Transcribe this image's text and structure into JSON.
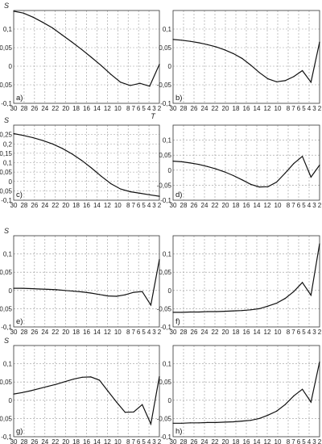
{
  "chart_data": [
    {
      "panel": "a)",
      "type": "line",
      "ylabel": "S",
      "xlabel": "T",
      "xticks": [
        "30",
        "28",
        "26",
        "24",
        "22",
        "20",
        "18",
        "16",
        "14",
        "12",
        "10",
        "8",
        "7",
        "6",
        "5",
        "4",
        "3",
        "2"
      ],
      "ylim": [
        -0.1,
        0.15
      ],
      "yticks": [
        "-0,1",
        "-0,05",
        "0",
        "0,05",
        "0,1"
      ],
      "values": [
        0.148,
        0.143,
        0.132,
        0.118,
        0.103,
        0.084,
        0.065,
        0.045,
        0.024,
        0.002,
        -0.022,
        -0.043,
        -0.052,
        -0.046,
        -0.054,
        0.005
      ]
    },
    {
      "panel": "b)",
      "type": "line",
      "ylabel": "",
      "xlabel": "",
      "xticks": [
        "30",
        "28",
        "26",
        "24",
        "22",
        "20",
        "18",
        "16",
        "14",
        "12",
        "10",
        "8",
        "7",
        "6",
        "5",
        "4",
        "3",
        "2"
      ],
      "ylim": [
        -0.1,
        0.15
      ],
      "yticks": [
        "-0,1",
        "-0,05",
        "0",
        "0,05",
        "0,1"
      ],
      "values": [
        0.072,
        0.07,
        0.067,
        0.063,
        0.058,
        0.052,
        0.044,
        0.034,
        0.021,
        0.003,
        -0.017,
        -0.034,
        -0.042,
        -0.039,
        -0.028,
        -0.012,
        -0.043,
        0.065
      ]
    },
    {
      "panel": "c)",
      "type": "line",
      "ylabel": "S",
      "xlabel": "",
      "xticks": [
        "30",
        "28",
        "26",
        "24",
        "22",
        "20",
        "18",
        "16",
        "14",
        "12",
        "10",
        "8",
        "7",
        "6",
        "5",
        "4",
        "3",
        "2"
      ],
      "ylim": [
        -0.1,
        0.3
      ],
      "yticks": [
        "-0,1",
        "-0,05",
        "0",
        "0,05",
        "0,1",
        "0,15",
        "0,2",
        "0,25"
      ],
      "values": [
        0.255,
        0.245,
        0.233,
        0.218,
        0.2,
        0.176,
        0.147,
        0.112,
        0.072,
        0.028,
        -0.012,
        -0.04,
        -0.055,
        -0.063,
        -0.071,
        -0.079
      ]
    },
    {
      "panel": "d)",
      "type": "line",
      "ylabel": "",
      "xlabel": "",
      "xticks": [
        "30",
        "28",
        "26",
        "24",
        "22",
        "20",
        "18",
        "16",
        "14",
        "12",
        "10",
        "8",
        "7",
        "6",
        "5",
        "4",
        "3",
        "2"
      ],
      "ylim": [
        -0.1,
        0.15
      ],
      "yticks": [
        "-0,1",
        "-0,05",
        "0",
        "0,05",
        "0,1"
      ],
      "values": [
        0.03,
        0.028,
        0.024,
        0.019,
        0.012,
        0.004,
        -0.006,
        -0.018,
        -0.032,
        -0.047,
        -0.056,
        -0.055,
        -0.04,
        -0.01,
        0.022,
        0.046,
        -0.023,
        0.017
      ]
    },
    {
      "panel": "e)",
      "type": "line",
      "ylabel": "S",
      "xlabel": "",
      "xticks": [
        "30",
        "28",
        "26",
        "24",
        "22",
        "20",
        "18",
        "16",
        "14",
        "12",
        "10",
        "8",
        "7",
        "6",
        "5",
        "4",
        "3",
        "2"
      ],
      "ylim": [
        -0.1,
        0.15
      ],
      "yticks": [
        "-0,1",
        "-0,05",
        "0",
        "0,05",
        "0,1"
      ],
      "values": [
        0.006,
        0.006,
        0.005,
        0.004,
        0.003,
        0.002,
        0.0,
        -0.002,
        -0.004,
        -0.007,
        -0.011,
        -0.015,
        -0.016,
        -0.012,
        -0.005,
        -0.003,
        -0.04,
        0.085
      ]
    },
    {
      "panel": "f)",
      "type": "line",
      "ylabel": "",
      "xlabel": "",
      "xticks": [
        "30",
        "28",
        "26",
        "24",
        "22",
        "20",
        "18",
        "16",
        "14",
        "12",
        "10",
        "8",
        "7",
        "6",
        "5",
        "4",
        "3",
        "2"
      ],
      "ylim": [
        -0.1,
        0.15
      ],
      "yticks": [
        "-0,1",
        "-0,05",
        "0",
        "0,05",
        "0,1"
      ],
      "values": [
        -0.06,
        -0.06,
        -0.059,
        -0.059,
        -0.058,
        -0.058,
        -0.057,
        -0.056,
        -0.055,
        -0.053,
        -0.05,
        -0.043,
        -0.035,
        -0.022,
        -0.003,
        0.022,
        -0.013,
        0.128
      ]
    },
    {
      "panel": "g)",
      "type": "line",
      "ylabel": "S",
      "xlabel": "",
      "xticks": [
        "30",
        "28",
        "26",
        "24",
        "22",
        "20",
        "18",
        "16",
        "14",
        "12",
        "10",
        "8",
        "7",
        "6",
        "5",
        "4",
        "3",
        "2"
      ],
      "ylim": [
        -0.1,
        0.15
      ],
      "yticks": [
        "-0,1",
        "-0,05",
        "0",
        "0,05",
        "0,1"
      ],
      "values": [
        0.017,
        0.021,
        0.026,
        0.032,
        0.038,
        0.044,
        0.051,
        0.058,
        0.063,
        0.064,
        0.055,
        0.025,
        -0.005,
        -0.033,
        -0.032,
        -0.012,
        -0.065,
        0.065
      ]
    },
    {
      "panel": "h)",
      "type": "line",
      "ylabel": "",
      "xlabel": "T",
      "xticks": [
        "30",
        "28",
        "26",
        "24",
        "22",
        "20",
        "18",
        "16",
        "14",
        "12",
        "10",
        "8",
        "7",
        "6",
        "5",
        "4",
        "3",
        "2"
      ],
      "ylim": [
        -0.1,
        0.15
      ],
      "yticks": [
        "-0,1",
        "-0,05",
        "0",
        "0,05",
        "0,1"
      ],
      "values": [
        -0.063,
        -0.063,
        -0.062,
        -0.062,
        -0.061,
        -0.061,
        -0.06,
        -0.059,
        -0.057,
        -0.055,
        -0.05,
        -0.041,
        -0.03,
        -0.012,
        0.012,
        0.03,
        -0.005,
        0.105
      ]
    }
  ]
}
